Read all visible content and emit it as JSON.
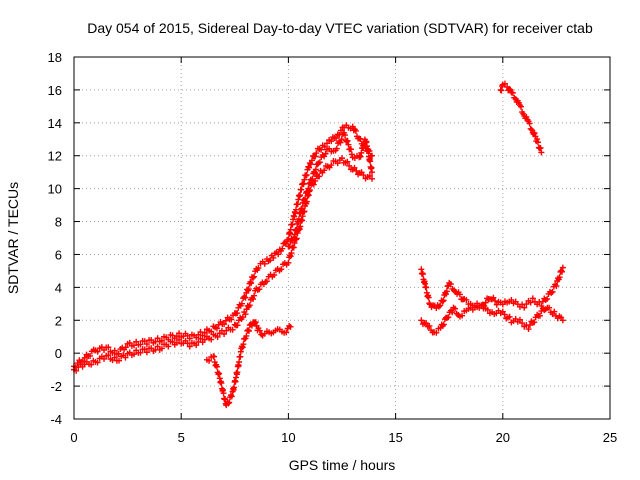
{
  "chart_data": {
    "type": "scatter",
    "title": "Day 054 of 2015, Sidereal Day-to-day VTEC variation (SDTVAR) for receiver ctab",
    "xlabel": "GPS time / hours",
    "ylabel": "SDTVAR / TECUs",
    "xlim": [
      0,
      25
    ],
    "ylim": [
      -4,
      18
    ],
    "xticks": [
      0,
      5,
      10,
      15,
      20,
      25
    ],
    "yticks": [
      -4,
      -2,
      0,
      2,
      4,
      6,
      8,
      10,
      12,
      14,
      16,
      18
    ],
    "grid": true,
    "marker": "plus",
    "color": "#ff0000",
    "series": [
      {
        "name": "main-band",
        "x": [
          0.0,
          0.5,
          1.0,
          1.5,
          2.0,
          2.5,
          3.0,
          3.5,
          4.0,
          4.5,
          5.0,
          5.5,
          6.0,
          6.5,
          7.0,
          7.5,
          8.0,
          8.3,
          8.6,
          9.0,
          9.3,
          9.6,
          10.0,
          10.3,
          10.6,
          11.0,
          11.3,
          11.6,
          12.0,
          12.3,
          12.6,
          13.0,
          13.3,
          13.6,
          13.9
        ],
        "y": [
          -0.8,
          -0.3,
          0.2,
          0.3,
          0.0,
          0.5,
          0.6,
          0.7,
          0.8,
          1.0,
          1.1,
          1.0,
          1.2,
          1.5,
          1.9,
          2.3,
          3.5,
          4.5,
          5.3,
          5.6,
          5.9,
          6.2,
          7.0,
          8.5,
          10.0,
          11.5,
          12.2,
          12.6,
          12.9,
          13.3,
          13.7,
          13.8,
          13.0,
          12.5,
          12.0
        ]
      },
      {
        "name": "main-lower",
        "x": [
          0.0,
          0.5,
          1.0,
          1.5,
          2.0,
          2.5,
          3.0,
          3.5,
          4.0,
          4.5,
          5.0,
          5.5,
          6.0,
          6.5,
          7.0,
          7.5,
          8.0,
          8.5,
          9.0,
          9.5,
          10.0,
          10.5,
          11.0,
          11.5,
          12.0,
          12.5,
          13.0,
          13.5,
          13.9
        ],
        "y": [
          -1.0,
          -0.7,
          -0.5,
          -0.2,
          -0.4,
          -0.1,
          0.1,
          0.2,
          0.3,
          0.6,
          0.7,
          0.5,
          0.8,
          1.0,
          1.3,
          1.6,
          2.5,
          3.8,
          4.5,
          5.0,
          5.6,
          7.5,
          10.0,
          11.0,
          11.5,
          11.8,
          11.2,
          10.8,
          10.6
        ]
      },
      {
        "name": "dip-segment",
        "x": [
          6.2,
          6.5,
          6.8,
          7.1,
          7.2,
          7.4,
          7.6,
          7.8,
          8.0,
          8.2,
          8.4,
          8.6,
          8.8,
          9.0,
          9.3,
          9.6,
          9.9,
          10.1
        ],
        "y": [
          -0.4,
          -0.2,
          -1.5,
          -3.2,
          -3.0,
          -2.4,
          -1.2,
          0.2,
          1.0,
          1.6,
          2.0,
          1.4,
          1.2,
          1.2,
          1.4,
          1.3,
          1.4,
          1.6
        ]
      },
      {
        "name": "late-drop",
        "x": [
          10.0,
          10.3,
          10.6,
          11.0,
          11.4,
          11.8,
          12.2,
          12.6,
          13.0,
          13.3,
          13.6,
          13.9
        ],
        "y": [
          6.5,
          7.2,
          8.8,
          10.3,
          11.6,
          12.3,
          12.4,
          13.3,
          12.0,
          11.8,
          13.0,
          11.0
        ]
      },
      {
        "name": "evening-upper",
        "x": [
          16.2,
          16.4,
          16.6,
          16.9,
          17.2,
          17.5,
          17.8,
          18.2,
          18.6,
          19.0,
          19.4,
          19.8,
          20.2,
          20.6,
          21.0,
          21.4,
          21.8,
          22.2,
          22.5,
          22.8
        ],
        "y": [
          5.1,
          4.0,
          3.0,
          2.7,
          3.2,
          4.2,
          3.8,
          3.2,
          3.0,
          2.8,
          3.4,
          3.0,
          3.2,
          3.0,
          2.9,
          3.2,
          3.0,
          3.6,
          4.2,
          5.2
        ]
      },
      {
        "name": "evening-lower",
        "x": [
          16.2,
          16.5,
          16.8,
          17.1,
          17.4,
          17.7,
          18.0,
          18.4,
          18.8,
          19.2,
          19.6,
          20.0,
          20.4,
          20.8,
          21.2,
          21.6,
          22.0,
          22.4,
          22.8
        ],
        "y": [
          2.0,
          1.6,
          1.3,
          1.5,
          2.2,
          2.7,
          2.3,
          2.6,
          2.9,
          2.6,
          2.5,
          2.4,
          2.0,
          1.9,
          1.6,
          2.2,
          2.8,
          2.4,
          2.0
        ]
      },
      {
        "name": "late-high",
        "x": [
          19.9,
          20.0,
          20.2,
          20.4,
          20.6,
          20.8,
          21.0,
          21.2,
          21.4,
          21.6,
          21.8
        ],
        "y": [
          16.0,
          16.3,
          16.2,
          15.8,
          15.5,
          15.0,
          14.5,
          14.0,
          13.5,
          12.9,
          12.2
        ]
      }
    ]
  }
}
